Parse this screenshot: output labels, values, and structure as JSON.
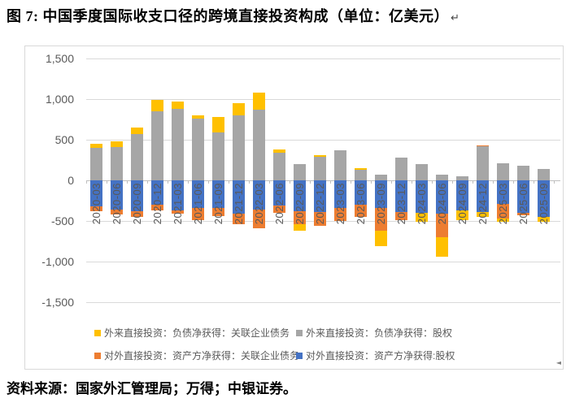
{
  "page": {
    "title": "图 7: 中国季度国际收支口径的跨境直接投资构成（单位：亿美元）",
    "paragraph_mark": "↵",
    "source_note": "资料来源：国家外汇管理局；万得；中银证券。",
    "corner_marker": "◄"
  },
  "colors": {
    "fdi_equity_gray": "#A6A6A6",
    "odi_equity_blue": "#4472C4",
    "odi_debt_orange": "#ED7D31",
    "fdi_debt_yellow": "#FFC000",
    "gridline": "#D9D9D9",
    "axis_line": "#BFBFBF",
    "tick_text": "#595959"
  },
  "chart_data": {
    "type": "bar",
    "stacked": true,
    "unit": "亿美元",
    "title": "中国季度国际收支口径的跨境直接投资构成",
    "categories": [
      "2020-03",
      "2020-06",
      "2020-09",
      "2020-12",
      "2021-03",
      "2021-06",
      "2021-09",
      "2021-12",
      "2022-03",
      "2022-06",
      "2022-09",
      "2022-12",
      "2023-03",
      "2023-06",
      "2023-09",
      "2023-12",
      "2024-03",
      "2024-06",
      "2024-09",
      "2024-12",
      "2025-03",
      "2025-06",
      "2025-09"
    ],
    "series": [
      {
        "name": "外来直接投资：负债净获得：股权",
        "color": "#A6A6A6",
        "values": [
          400,
          410,
          570,
          855,
          880,
          765,
          590,
          805,
          875,
          340,
          200,
          295,
          375,
          130,
          70,
          285,
          200,
          75,
          50,
          425,
          215,
          185,
          140
        ]
      },
      {
        "name": "对外直接投资：资产方净获得:股权",
        "color": "#4472C4",
        "values": [
          -315,
          -355,
          -380,
          -300,
          -365,
          -340,
          -335,
          -410,
          -360,
          -310,
          -375,
          -390,
          -340,
          -300,
          -340,
          -385,
          -395,
          -410,
          -370,
          -390,
          -290,
          -395,
          -445
        ]
      },
      {
        "name": "对外直接投资：资产方净获得：关联企业债务",
        "color": "#ED7D31",
        "values": [
          -60,
          -65,
          -65,
          -65,
          -40,
          -145,
          -100,
          -130,
          -225,
          -90,
          -165,
          -170,
          -160,
          -145,
          -275,
          -105,
          0,
          -290,
          0,
          10,
          -175,
          -35,
          0
        ]
      },
      {
        "name": "外来直接投资：负债净获得：关联企业债务",
        "color": "#FFC000",
        "values": [
          50,
          70,
          80,
          135,
          95,
          35,
          190,
          150,
          210,
          45,
          -75,
          15,
          0,
          20,
          -190,
          0,
          -110,
          -240,
          -115,
          -55,
          -45,
          0,
          -65
        ]
      }
    ],
    "legend_display_order": [
      3,
      0,
      2,
      1
    ],
    "ylim": [
      -1500,
      1500
    ],
    "yticks": [
      1500,
      1000,
      500,
      0,
      -500,
      -1000,
      -1500
    ],
    "ytick_labels": [
      "1,500",
      "1,000",
      "500",
      "0",
      "-500",
      "-1,000",
      "-1,500"
    ],
    "grid": true,
    "legend_position": "bottom"
  }
}
